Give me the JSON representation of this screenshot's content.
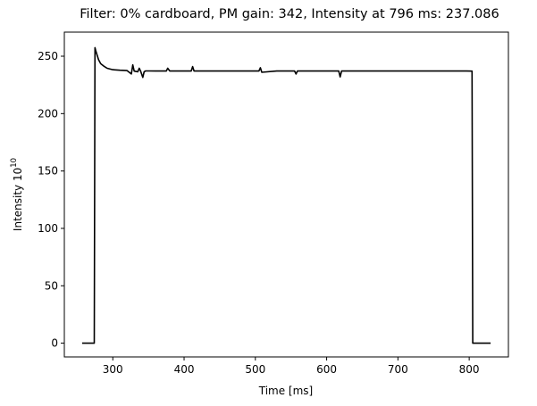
{
  "chart_data": {
    "type": "line",
    "title": "Filter: 0% cardboard, PM gain: 342, Intensity at 796 ms: 237.086",
    "xlabel": "Time [ms]",
    "ylabel_base": "Intensity 10",
    "ylabel_exponent": "10",
    "xlim": [
      232,
      855
    ],
    "ylim": [
      -12,
      271
    ],
    "xticks": [
      300,
      400,
      500,
      600,
      700,
      800
    ],
    "yticks": [
      0,
      50,
      100,
      150,
      200,
      250
    ],
    "grid": false,
    "line_color": "#000000",
    "series": [
      {
        "x": [
          257,
          274,
          275,
          276,
          278,
          280,
          283,
          287,
          292,
          300,
          310,
          320,
          326,
          328,
          330,
          335,
          337,
          339,
          342,
          344,
          346,
          350,
          360,
          375,
          377,
          380,
          400,
          410,
          412,
          414,
          430,
          450,
          470,
          490,
          505,
          507,
          509,
          530,
          555,
          557,
          559,
          580,
          600,
          617,
          619,
          621,
          640,
          660,
          680,
          700,
          720,
          740,
          760,
          780,
          796,
          804,
          805,
          830
        ],
        "y": [
          0,
          0,
          257.5,
          255,
          251,
          247,
          243.5,
          241.5,
          239.5,
          238.3,
          237.8,
          237.5,
          234.5,
          242.5,
          237,
          236.5,
          239.5,
          237,
          231.5,
          236.5,
          237.2,
          237.2,
          237.1,
          237.1,
          239.5,
          237.1,
          237.1,
          237.1,
          241,
          237.1,
          237.1,
          237.1,
          237.1,
          237.1,
          237.1,
          240,
          236,
          237.1,
          237.1,
          234.5,
          237.1,
          237.1,
          237.1,
          237.1,
          232,
          237.1,
          237.1,
          237.1,
          237.1,
          237.1,
          237.1,
          237.1,
          237.1,
          237.1,
          237.086,
          237,
          0,
          0
        ]
      }
    ]
  }
}
